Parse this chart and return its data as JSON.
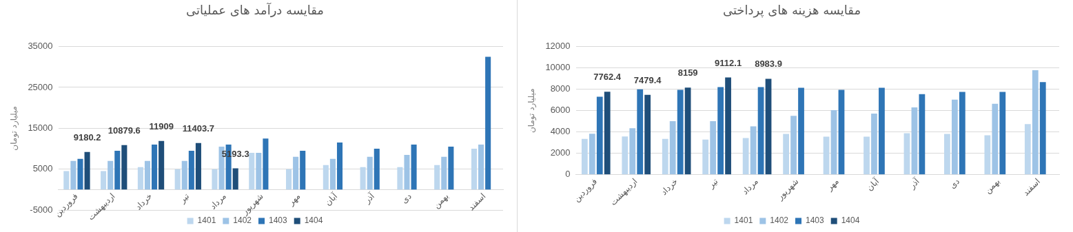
{
  "chart_data": [
    {
      "type": "bar",
      "title": "مقایسه درآمد های عملیاتی",
      "ylabel": "میلیارد تومان",
      "categories": [
        "فروردین",
        "اردیبهشت",
        "خرداد",
        "تیر",
        "مرداد",
        "شهریور",
        "مهر",
        "آبان",
        "آذر",
        "دی",
        "بهمن",
        "اسفند"
      ],
      "series": [
        {
          "name": "1401",
          "color": "#bdd7ee",
          "values": [
            4500,
            4500,
            5500,
            5000,
            5000,
            9000,
            5000,
            6000,
            5500,
            5500,
            6000,
            10000
          ]
        },
        {
          "name": "1402",
          "color": "#9dc3e6",
          "values": [
            7000,
            7000,
            7000,
            7000,
            10500,
            9000,
            8000,
            7500,
            8000,
            8500,
            8000,
            11000
          ]
        },
        {
          "name": "1403",
          "color": "#2e75b6",
          "values": [
            7500,
            9500,
            11000,
            9500,
            11000,
            12500,
            9500,
            11500,
            10000,
            11000,
            10500,
            32500
          ]
        },
        {
          "name": "1404",
          "color": "#1f4e79",
          "values": [
            9180.2,
            10879.6,
            11909,
            11403.7,
            5193.3,
            null,
            null,
            null,
            null,
            null,
            null,
            null
          ],
          "value_labels": [
            "9180.2",
            "10879.6",
            "11909",
            "11403.7",
            "5193.3",
            null,
            null,
            null,
            null,
            null,
            null,
            null
          ]
        }
      ],
      "ylim": [
        -5000,
        35000
      ],
      "yticks": [
        -5000,
        5000,
        15000,
        25000,
        35000
      ],
      "grid": "y",
      "legend": "bottom"
    },
    {
      "type": "bar",
      "title": "مقایسه هزینه های پرداختی",
      "ylabel": "میلیارد تومان",
      "categories": [
        "فروردین",
        "اردیبهشت",
        "خرداد",
        "تیر",
        "مرداد",
        "شهریور",
        "مهر",
        "آبان",
        "آذر",
        "دی",
        "بهمن",
        "اسفند"
      ],
      "series": [
        {
          "name": "1401",
          "color": "#bdd7ee",
          "values": [
            3360,
            3580,
            3360,
            3300,
            3430,
            3820,
            3560,
            3560,
            3890,
            3820,
            3690,
            4740
          ]
        },
        {
          "name": "1402",
          "color": "#9dc3e6",
          "values": [
            3840,
            4350,
            5020,
            5020,
            4540,
            5520,
            6050,
            5720,
            6310,
            7030,
            6640,
            9780
          ]
        },
        {
          "name": "1403",
          "color": "#2e75b6",
          "values": [
            7310,
            8000,
            7950,
            8200,
            8200,
            8140,
            7950,
            8140,
            7550,
            7750,
            7750,
            8670
          ]
        },
        {
          "name": "1404",
          "color": "#1f4e79",
          "values": [
            7762.4,
            7479.4,
            8159,
            9112.1,
            8983.9,
            null,
            null,
            null,
            null,
            null,
            null,
            null
          ],
          "value_labels": [
            "7762.4",
            "7479.4",
            "8159",
            "9112.1",
            "8983.9",
            null,
            null,
            null,
            null,
            null,
            null,
            null
          ]
        }
      ],
      "ylim": [
        0,
        12000
      ],
      "yticks": [
        0,
        2000,
        4000,
        6000,
        8000,
        10000,
        12000
      ],
      "grid": "y",
      "legend": "bottom"
    }
  ]
}
